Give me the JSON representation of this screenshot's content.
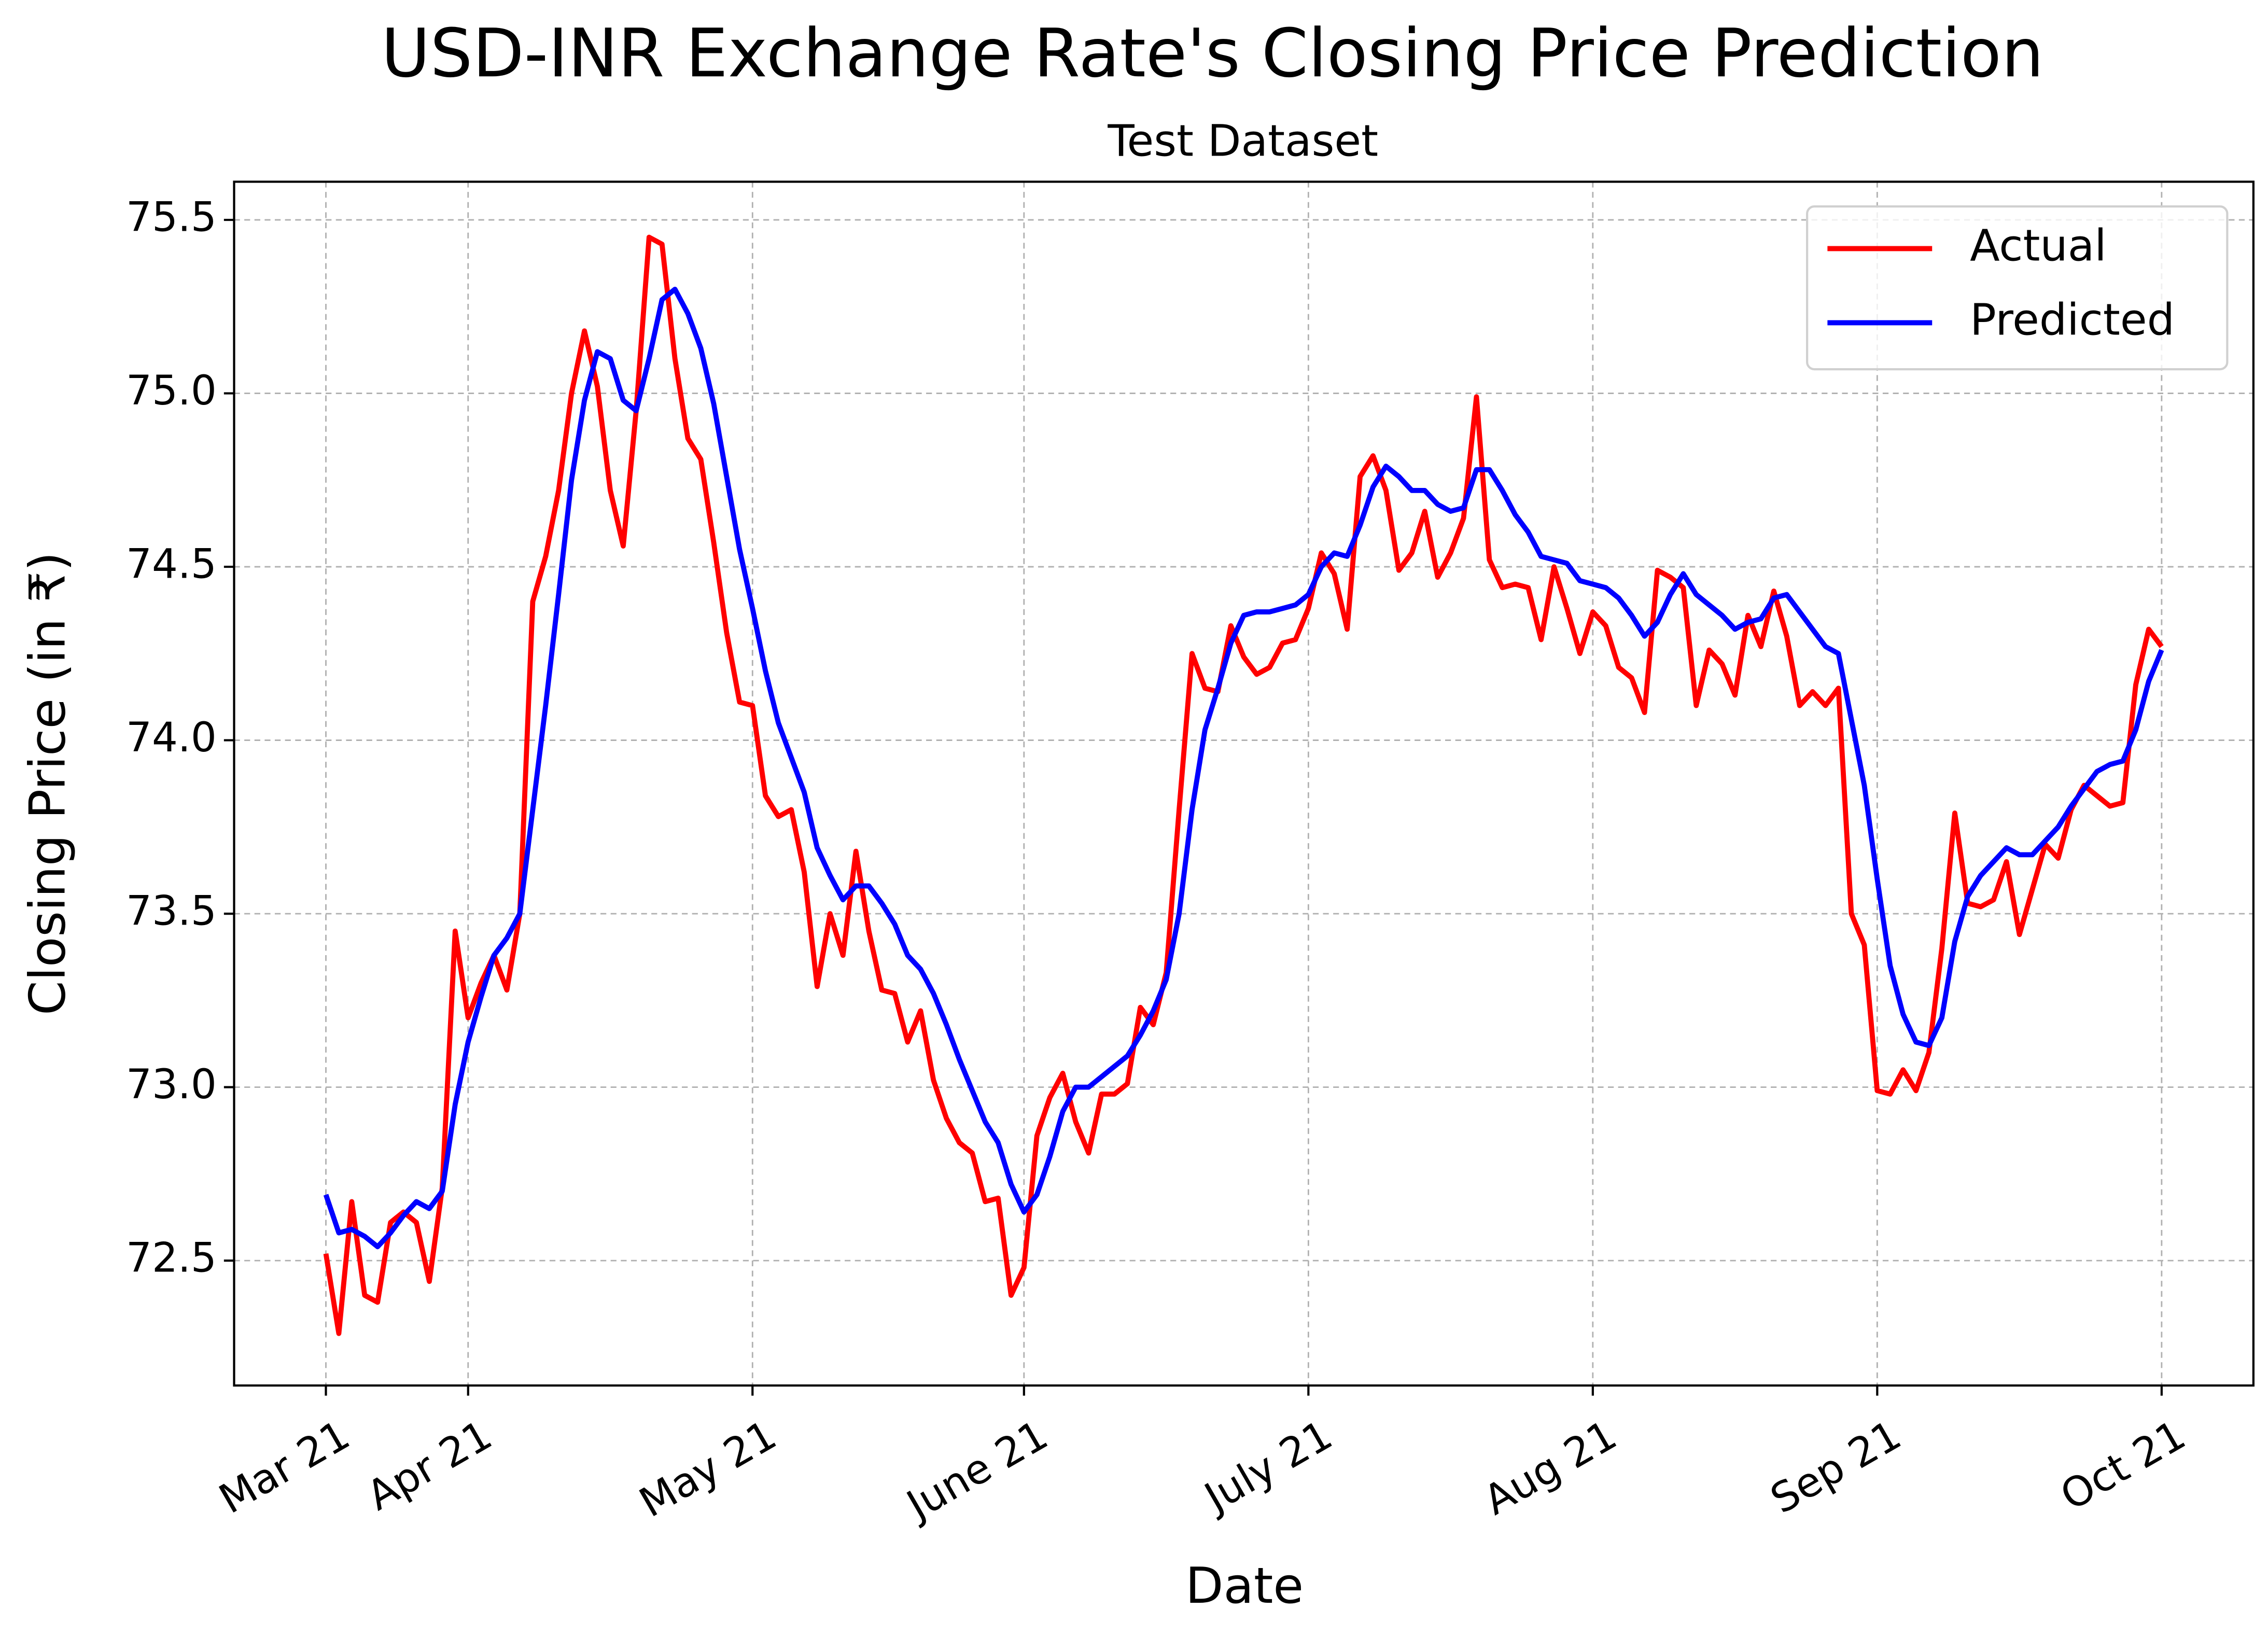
{
  "chart_data": {
    "type": "line",
    "title": "USD-INR Exchange Rate's Closing Price Prediction",
    "subtitle": "Test Dataset",
    "x_label": "Date",
    "y_label": "Closing Price (in ₹)",
    "xlim": [
      -7.1,
      149.1
    ],
    "xticks": [
      {
        "value": 0,
        "label": "Mar 21"
      },
      {
        "value": 11,
        "label": "Apr 21"
      },
      {
        "value": 33,
        "label": "May 21"
      },
      {
        "value": 54,
        "label": "June 21"
      },
      {
        "value": 76,
        "label": "July 21"
      },
      {
        "value": 98,
        "label": "Aug 21"
      },
      {
        "value": 120,
        "label": "Sep 21"
      },
      {
        "value": 142,
        "label": "Oct 21"
      }
    ],
    "ylim": [
      72.14,
      75.61
    ],
    "yticks": [
      72.5,
      {
        "value": 73,
        "label": "73.0"
      },
      73.5,
      {
        "value": 74,
        "label": "74.0"
      },
      74.5,
      {
        "value": 75,
        "label": "75.0"
      },
      75.5
    ],
    "grid": true,
    "legend": "upper right",
    "series": [
      {
        "name": "Actual",
        "color": "#ff0000",
        "values": [
          72.52,
          72.29,
          72.67,
          72.4,
          72.38,
          72.61,
          72.64,
          72.61,
          72.44,
          72.71,
          73.45,
          73.2,
          73.3,
          73.38,
          73.28,
          73.5,
          74.4,
          74.53,
          74.72,
          75.0,
          75.18,
          75.02,
          74.72,
          74.56,
          74.95,
          75.45,
          75.43,
          75.1,
          74.87,
          74.81,
          74.57,
          74.31,
          74.11,
          74.1,
          73.84,
          73.78,
          73.8,
          73.62,
          73.29,
          73.5,
          73.38,
          73.68,
          73.45,
          73.28,
          73.27,
          73.13,
          73.22,
          73.02,
          72.91,
          72.84,
          72.81,
          72.67,
          72.68,
          72.4,
          72.48,
          72.86,
          72.97,
          73.04,
          72.9,
          72.81,
          72.98,
          72.98,
          73.01,
          73.23,
          73.18,
          73.33,
          73.8,
          74.25,
          74.15,
          74.14,
          74.33,
          74.24,
          74.19,
          74.21,
          74.28,
          74.29,
          74.38,
          74.54,
          74.48,
          74.32,
          74.76,
          74.82,
          74.72,
          74.49,
          74.54,
          74.66,
          74.47,
          74.54,
          74.64,
          74.99,
          74.52,
          74.44,
          74.45,
          74.44,
          74.29,
          74.5,
          74.38,
          74.25,
          74.37,
          74.33,
          74.21,
          74.18,
          74.08,
          74.49,
          74.47,
          74.44,
          74.1,
          74.26,
          74.22,
          74.13,
          74.36,
          74.27,
          74.43,
          74.3,
          74.1,
          74.14,
          74.1,
          74.15,
          73.5,
          73.41,
          72.99,
          72.98,
          73.05,
          72.99,
          73.1,
          73.4,
          73.79,
          73.53,
          73.52,
          73.54,
          73.65,
          73.44,
          73.57,
          73.7,
          73.66,
          73.8,
          73.87,
          73.84,
          73.81,
          73.82,
          74.16,
          74.32,
          74.27
        ]
      },
      {
        "name": "Predicted",
        "color": "#0000ff",
        "values": [
          72.69,
          72.58,
          72.59,
          72.57,
          72.54,
          72.58,
          72.63,
          72.67,
          72.65,
          72.7,
          72.95,
          73.13,
          73.26,
          73.38,
          73.43,
          73.5,
          73.8,
          74.1,
          74.42,
          74.75,
          74.98,
          75.12,
          75.1,
          74.98,
          74.95,
          75.1,
          75.27,
          75.3,
          75.23,
          75.13,
          74.97,
          74.76,
          74.55,
          74.38,
          74.2,
          74.05,
          73.95,
          73.85,
          73.69,
          73.61,
          73.54,
          73.58,
          73.58,
          73.53,
          73.47,
          73.38,
          73.34,
          73.27,
          73.18,
          73.08,
          72.99,
          72.9,
          72.84,
          72.72,
          72.64,
          72.69,
          72.8,
          72.93,
          73.0,
          73.0,
          73.03,
          73.06,
          73.09,
          73.15,
          73.22,
          73.31,
          73.5,
          73.8,
          74.03,
          74.15,
          74.28,
          74.36,
          74.37,
          74.37,
          74.38,
          74.39,
          74.42,
          74.5,
          74.54,
          74.53,
          74.62,
          74.73,
          74.79,
          74.76,
          74.72,
          74.72,
          74.68,
          74.66,
          74.67,
          74.78,
          74.78,
          74.72,
          74.65,
          74.6,
          74.53,
          74.52,
          74.51,
          74.46,
          74.45,
          74.44,
          74.41,
          74.36,
          74.3,
          74.34,
          74.42,
          74.48,
          74.42,
          74.39,
          74.36,
          74.32,
          74.34,
          74.35,
          74.41,
          74.42,
          74.37,
          74.32,
          74.27,
          74.25,
          74.06,
          73.87,
          73.6,
          73.35,
          73.21,
          73.13,
          73.12,
          73.2,
          73.42,
          73.55,
          73.61,
          73.65,
          73.69,
          73.67,
          73.67,
          73.71,
          73.75,
          73.81,
          73.86,
          73.91,
          73.93,
          73.94,
          74.03,
          74.17,
          74.26
        ]
      }
    ]
  }
}
